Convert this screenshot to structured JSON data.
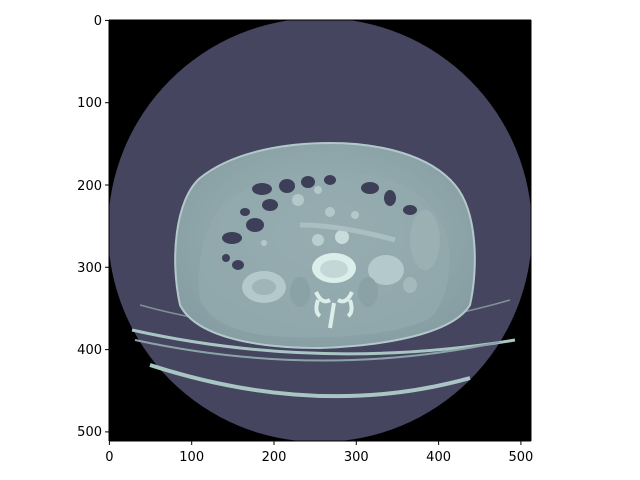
{
  "figure": {
    "image_description_colormap": "bone",
    "colors": {
      "background": "#000000",
      "field_of_view": "#454560",
      "body": "#8fa6aa",
      "bone": "#d8eeea",
      "table": "#a9c6c4"
    },
    "x_ticks": [
      "0",
      "100",
      "200",
      "300",
      "400",
      "500"
    ],
    "y_ticks": [
      "0",
      "100",
      "200",
      "300",
      "400",
      "500"
    ],
    "x_range": [
      0,
      512
    ],
    "y_range": [
      0,
      512
    ]
  }
}
